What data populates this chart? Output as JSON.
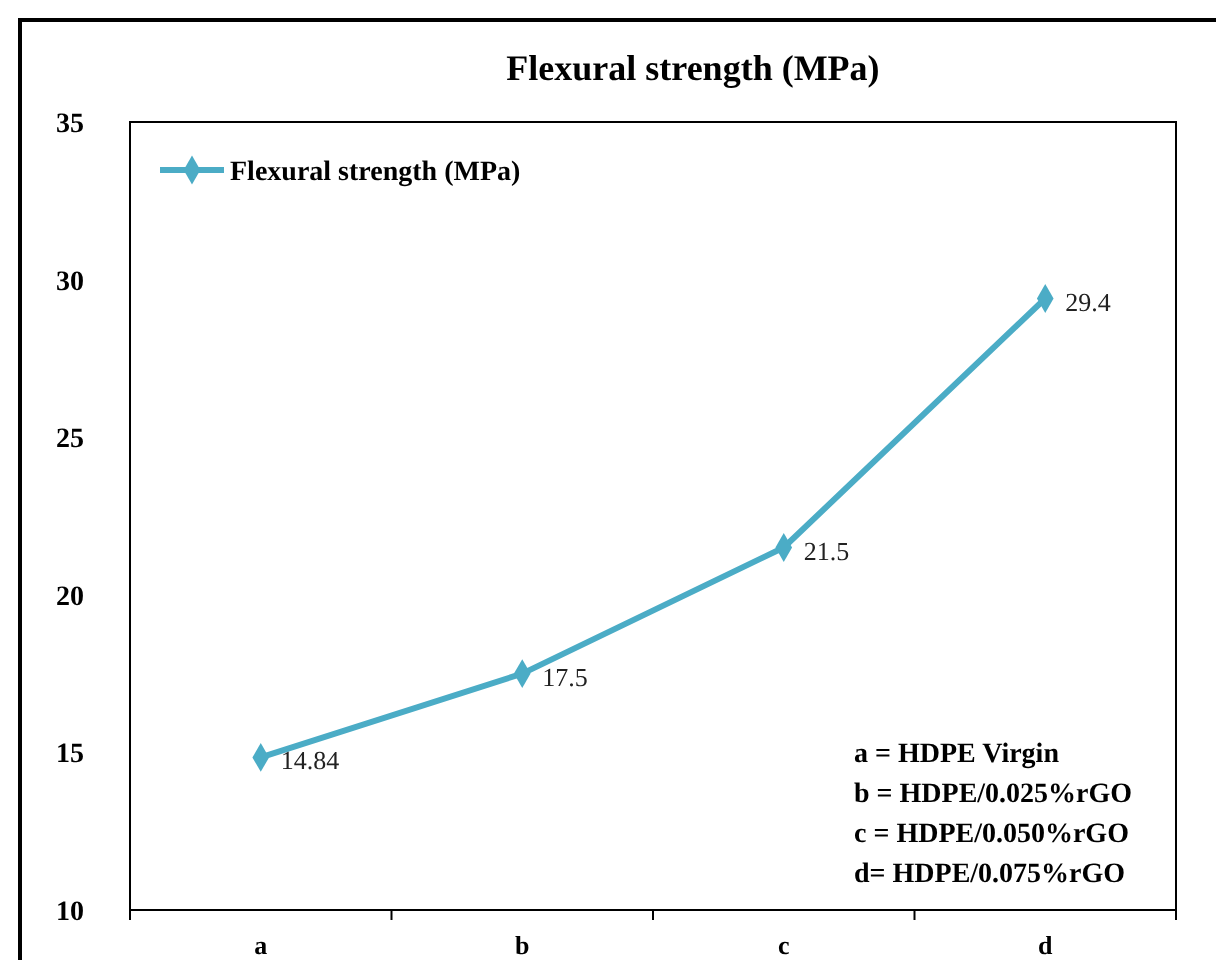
{
  "chart_data": {
    "type": "line",
    "title": "Flexural strength (MPa)",
    "categories": [
      "a",
      "b",
      "c",
      "d"
    ],
    "series": [
      {
        "name": "Flexural strength (MPa)",
        "color": "#4bacc6",
        "values": [
          14.84,
          17.5,
          21.5,
          29.4
        ]
      }
    ],
    "ylim": [
      10,
      35
    ],
    "yticks": [
      10,
      15,
      20,
      25,
      30,
      35
    ],
    "grid": false,
    "legend": "top left",
    "marker": "diamond",
    "line_style": "solid",
    "data_labels": true,
    "annotations": [
      "a = HDPE Virgin",
      "b = HDPE/0.025%rGO",
      "c = HDPE/0.050%rGO",
      "d= HDPE/0.075%rGO"
    ]
  }
}
